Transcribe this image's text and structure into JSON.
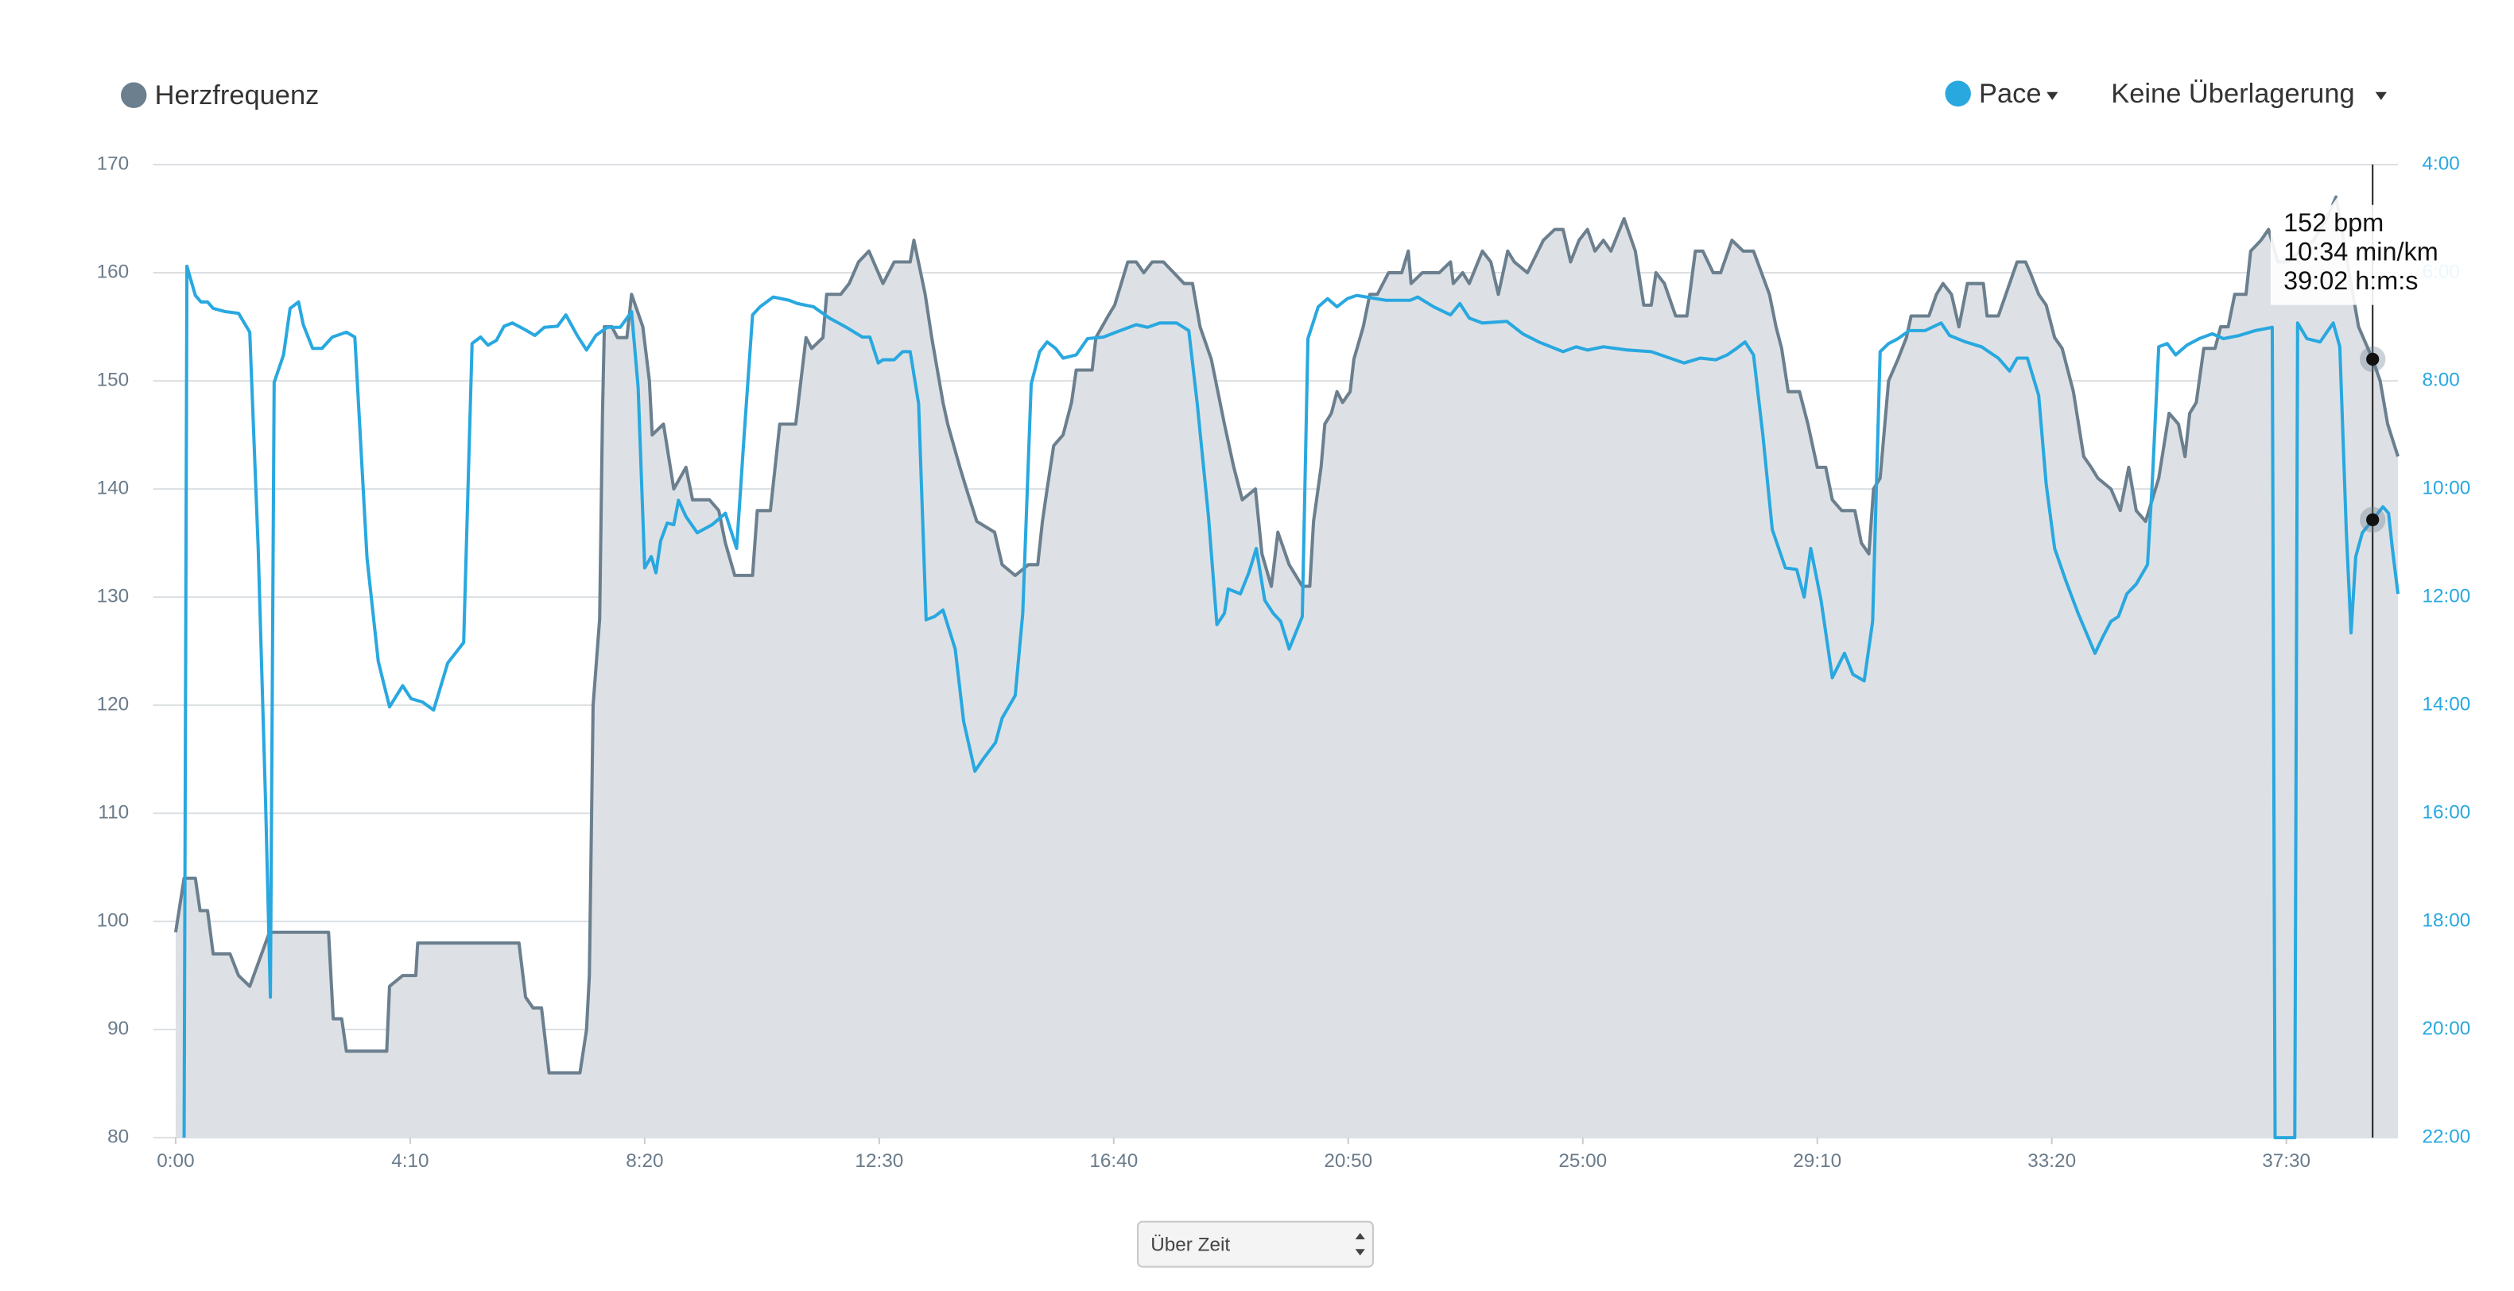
{
  "chart_data": {
    "type": "line",
    "legend": {
      "left": "Herzfrequenz",
      "pace": "Pace",
      "overlay": "Keine Überlagerung"
    },
    "xlim": [
      0,
      2369
    ],
    "xticks": [
      {
        "value": 0,
        "label": "0:00"
      },
      {
        "value": 250,
        "label": "4:10"
      },
      {
        "value": 500,
        "label": "8:20"
      },
      {
        "value": 750,
        "label": "12:30"
      },
      {
        "value": 1000,
        "label": "16:40"
      },
      {
        "value": 1250,
        "label": "20:50"
      },
      {
        "value": 1500,
        "label": "25:00"
      },
      {
        "value": 1750,
        "label": "29:10"
      },
      {
        "value": 2000,
        "label": "33:20"
      },
      {
        "value": 2250,
        "label": "37:30"
      }
    ],
    "ylim": [
      80,
      170
    ],
    "yticks": [
      80,
      90,
      100,
      110,
      120,
      130,
      140,
      150,
      160,
      170
    ],
    "y2lim": [
      22,
      4
    ],
    "y2ticks": [
      {
        "value": 4,
        "label": "4:00"
      },
      {
        "value": 6,
        "label": "6:00"
      },
      {
        "value": 8,
        "label": "8:00"
      },
      {
        "value": 10,
        "label": "10:00"
      },
      {
        "value": 12,
        "label": "12:00"
      },
      {
        "value": 14,
        "label": "14:00"
      },
      {
        "value": 16,
        "label": "16:00"
      },
      {
        "value": 18,
        "label": "18:00"
      },
      {
        "value": 20,
        "label": "20:00"
      },
      {
        "value": 22,
        "label": "22:00"
      }
    ],
    "grid": true,
    "series": [
      {
        "name": "Herzfrequenz",
        "color": "#6b7f8e",
        "fill": "#dde1e5",
        "x": [
          0,
          9,
          21,
          26,
          34,
          40,
          58,
          67,
          79,
          100,
          163,
          168,
          177,
          182,
          225,
          228,
          242,
          256,
          258,
          366,
          373,
          381,
          390,
          398,
          431,
          438,
          441,
          445,
          452,
          455,
          457,
          465,
          471,
          481,
          486,
          498,
          505,
          508,
          520,
          531,
          544,
          551,
          569,
          579,
          586,
          596,
          615,
          620,
          634,
          644,
          661,
          672,
          678,
          690,
          694,
          709,
          718,
          728,
          739,
          754,
          766,
          783,
          787,
          799,
          806,
          818,
          823,
          836,
          843,
          854,
          873,
          881,
          895,
          909,
          919,
          924,
          929,
          936,
          946,
          955,
          960,
          977,
          981,
          994,
          1001,
          1015,
          1024,
          1032,
          1041,
          1053,
          1075,
          1084,
          1092,
          1104,
          1118,
          1128,
          1137,
          1151,
          1158,
          1168,
          1175,
          1187,
          1201,
          1209,
          1213,
          1221,
          1225,
          1232,
          1238,
          1244,
          1252,
          1256,
          1266,
          1273,
          1281,
          1293,
          1307,
          1314,
          1317,
          1329,
          1347,
          1359,
          1362,
          1372,
          1379,
          1393,
          1402,
          1410,
          1420,
          1427,
          1441,
          1458,
          1470,
          1479,
          1487,
          1496,
          1505,
          1513,
          1522,
          1530,
          1544,
          1556,
          1565,
          1573,
          1578,
          1587,
          1599,
          1611,
          1620,
          1628,
          1639,
          1647,
          1659,
          1671,
          1682,
          1699,
          1706,
          1712,
          1719,
          1731,
          1740,
          1750,
          1759,
          1766,
          1776,
          1790,
          1797,
          1805,
          1810,
          1817,
          1826,
          1836,
          1845,
          1850,
          1869,
          1877,
          1884,
          1893,
          1901,
          1910,
          1919,
          1927,
          1931,
          1943,
          1955,
          1963,
          1972,
          1977,
          1986,
          1994,
          2003,
          2011,
          2023,
          2034,
          2042,
          2049,
          2063,
          2073,
          2082,
          2090,
          2100,
          2114,
          2125,
          2135,
          2142,
          2147,
          2154,
          2162,
          2174,
          2180,
          2188,
          2195,
          2207,
          2212,
          2223,
          2231,
          2241,
          2252,
          2265,
          2279,
          2293,
          2303,
          2317,
          2327,
          2342,
          2350,
          2358,
          2369
        ],
        "values": [
          99,
          104,
          104,
          101,
          101,
          97,
          97,
          95,
          94,
          99,
          99,
          91,
          91,
          88,
          88,
          94,
          95,
          95,
          98,
          98,
          93,
          92,
          92,
          86,
          86,
          90,
          95,
          120,
          128,
          147,
          155,
          155,
          154,
          154,
          158,
          155,
          150,
          145,
          146,
          140,
          142,
          139,
          139,
          138,
          135,
          132,
          132,
          138,
          138,
          146,
          146,
          154,
          153,
          154,
          158,
          158,
          159,
          161,
          162,
          159,
          161,
          161,
          163,
          158,
          154,
          148,
          146,
          142,
          140,
          137,
          136,
          133,
          132,
          133,
          133,
          137,
          140,
          144,
          145,
          148,
          151,
          151,
          154,
          156,
          157,
          161,
          161,
          160,
          161,
          161,
          159,
          159,
          155,
          152,
          146,
          142,
          139,
          140,
          134,
          131,
          136,
          133,
          131,
          131,
          137,
          142,
          146,
          147,
          149,
          148,
          149,
          152,
          155,
          158,
          158,
          160,
          160,
          162,
          159,
          160,
          160,
          161,
          159,
          160,
          159,
          162,
          161,
          158,
          162,
          161,
          160,
          163,
          164,
          164,
          161,
          163,
          164,
          162,
          163,
          162,
          165,
          162,
          157,
          157,
          160,
          159,
          156,
          156,
          162,
          162,
          160,
          160,
          163,
          162,
          162,
          158,
          155,
          153,
          149,
          149,
          146,
          142,
          142,
          139,
          138,
          138,
          135,
          134,
          140,
          141,
          150,
          152,
          154,
          156,
          156,
          158,
          159,
          158,
          155,
          159,
          159,
          159,
          156,
          156,
          159,
          161,
          161,
          160,
          158,
          157,
          154,
          153,
          149,
          143,
          142,
          141,
          140,
          138,
          142,
          138,
          137,
          141,
          147,
          146,
          143,
          147,
          148,
          153,
          153,
          155,
          155,
          158,
          158,
          162,
          163,
          164,
          161,
          161,
          162,
          163,
          165,
          167,
          160,
          155,
          152,
          150,
          146,
          143
        ]
      },
      {
        "name": "Pace",
        "color": "#29a8e0",
        "axis": "y2",
        "x": [
          9,
          12,
          21,
          27,
          34,
          40,
          53,
          67,
          79,
          88,
          96,
          101,
          105,
          115,
          122,
          131,
          136,
          146,
          156,
          167,
          182,
          191,
          204,
          216,
          228,
          242,
          251,
          263,
          275,
          290,
          307,
          316,
          325,
          333,
          342,
          350,
          359,
          371,
          383,
          393,
          407,
          416,
          428,
          438,
          448,
          460,
          474,
          486,
          493,
          500,
          507,
          512,
          517,
          524,
          531,
          536,
          544,
          556,
          572,
          586,
          598,
          606,
          615,
          623,
          637,
          654,
          663,
          680,
          697,
          715,
          732,
          740,
          749,
          754,
          766,
          775,
          783,
          792,
          800,
          809,
          818,
          831,
          840,
          852,
          861,
          874,
          881,
          895,
          903,
          912,
          921,
          929,
          938,
          946,
          960,
          972,
          989,
          1007,
          1024,
          1036,
          1049,
          1067,
          1080,
          1089,
          1101,
          1110,
          1118,
          1122,
          1135,
          1144,
          1152,
          1161,
          1170,
          1178,
          1187,
          1201,
          1207,
          1218,
          1228,
          1238,
          1249,
          1259,
          1290,
          1316,
          1324,
          1341,
          1359,
          1369,
          1379,
          1393,
          1419,
          1436,
          1453,
          1479,
          1493,
          1505,
          1522,
          1548,
          1573,
          1608,
          1625,
          1642,
          1654,
          1664,
          1673,
          1682,
          1692,
          1702,
          1716,
          1728,
          1736,
          1743,
          1754,
          1766,
          1779,
          1788,
          1800,
          1809,
          1817,
          1826,
          1836,
          1848,
          1865,
          1882,
          1891,
          1908,
          1925,
          1943,
          1955,
          1963,
          1974,
          1986,
          1994,
          2003,
          2015,
          2028,
          2046,
          2054,
          2063,
          2071,
          2080,
          2090,
          2102,
          2107,
          2114,
          2123,
          2132,
          2144,
          2157,
          2171,
          2183,
          2200,
          2217,
          2235,
          2238,
          2259,
          2262,
          2272,
          2286,
          2300,
          2307,
          2314,
          2319,
          2324,
          2331,
          2342,
          2353,
          2359,
          2363,
          2369
        ],
        "values": [
          22,
          5.88,
          6.42,
          6.54,
          6.54,
          6.66,
          6.72,
          6.75,
          7.1,
          11.1,
          15.88,
          19.4,
          8.03,
          7.52,
          6.66,
          6.54,
          6.96,
          7.4,
          7.4,
          7.19,
          7.1,
          7.19,
          11.28,
          13.19,
          14.03,
          13.64,
          13.88,
          13.94,
          14.09,
          13.22,
          12.84,
          7.31,
          7.19,
          7.34,
          7.25,
          6.99,
          6.93,
          7.04,
          7.16,
          7.01,
          6.99,
          6.78,
          7.16,
          7.43,
          7.16,
          7.01,
          7.01,
          6.72,
          8.12,
          11.46,
          11.25,
          11.55,
          10.96,
          10.63,
          10.66,
          10.21,
          10.51,
          10.81,
          10.66,
          10.45,
          11.1,
          9.01,
          6.78,
          6.63,
          6.45,
          6.51,
          6.57,
          6.63,
          6.84,
          7.01,
          7.19,
          7.19,
          7.67,
          7.61,
          7.61,
          7.46,
          7.46,
          8.42,
          12.42,
          12.36,
          12.24,
          12.96,
          14.3,
          15.22,
          14.99,
          14.69,
          14.24,
          13.82,
          12.3,
          8.06,
          7.46,
          7.28,
          7.4,
          7.58,
          7.52,
          7.22,
          7.19,
          7.07,
          6.96,
          7.01,
          6.93,
          6.93,
          7.07,
          8.42,
          10.51,
          12.51,
          12.3,
          11.85,
          11.94,
          11.55,
          11.1,
          12.06,
          12.3,
          12.45,
          12.96,
          12.36,
          7.22,
          6.63,
          6.48,
          6.63,
          6.48,
          6.42,
          6.51,
          6.51,
          6.45,
          6.63,
          6.78,
          6.57,
          6.84,
          6.93,
          6.9,
          7.13,
          7.28,
          7.46,
          7.37,
          7.43,
          7.37,
          7.43,
          7.46,
          7.67,
          7.58,
          7.61,
          7.52,
          7.4,
          7.28,
          7.52,
          9.01,
          10.75,
          11.46,
          11.49,
          12.0,
          11.1,
          12.06,
          13.49,
          13.04,
          13.43,
          13.55,
          12.45,
          7.46,
          7.31,
          7.22,
          7.07,
          7.07,
          6.93,
          7.16,
          7.28,
          7.37,
          7.58,
          7.82,
          7.58,
          7.58,
          8.27,
          9.91,
          11.1,
          11.7,
          12.3,
          13.04,
          12.75,
          12.45,
          12.36,
          11.94,
          11.76,
          11.4,
          9.91,
          7.37,
          7.31,
          7.52,
          7.34,
          7.22,
          7.13,
          7.22,
          7.16,
          7.07,
          7.01,
          22,
          22,
          6.93,
          7.22,
          7.28,
          6.93,
          7.37,
          10.81,
          12.66,
          11.25,
          10.81,
          10.57,
          10.33,
          10.45,
          11.1,
          11.94
        ]
      }
    ],
    "tooltip": {
      "heart_rate": {
        "value": 152,
        "label": "152 bpm"
      },
      "pace": {
        "value": 10.57,
        "label": "10:34 min/km"
      },
      "time": {
        "value": 2342,
        "label": "39:02 h:m:s"
      }
    },
    "x_mode": "Über Zeit"
  }
}
